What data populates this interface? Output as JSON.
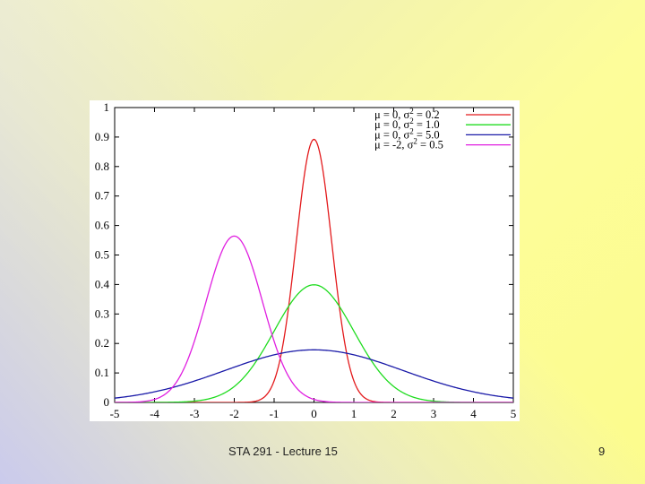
{
  "slide": {
    "footer": "STA 291 - Lecture 15",
    "page_number": "9"
  },
  "chart_data": {
    "type": "line",
    "title": "",
    "xlabel": "",
    "ylabel": "",
    "xlim": [
      -5,
      5
    ],
    "ylim": [
      0,
      1
    ],
    "x_ticks": [
      "-5",
      "-4",
      "-3",
      "-2",
      "-1",
      "0",
      "1",
      "2",
      "3",
      "4",
      "5"
    ],
    "y_ticks": [
      "0",
      "0.1",
      "0.2",
      "0.3",
      "0.4",
      "0.5",
      "0.6",
      "0.7",
      "0.8",
      "0.9",
      "1"
    ],
    "grid": false,
    "legend_position": "top-right",
    "series": [
      {
        "name": "μ = 0, σ2 = 0.2",
        "legend_mu": "μ =  0, σ",
        "legend_rest": " = 0.2",
        "mu": 0,
        "variance": 0.2,
        "color": "#e31a1c",
        "x": [
          -5,
          -4,
          -3,
          -2,
          -1,
          0,
          1,
          2,
          3,
          4,
          5
        ],
        "values": [
          0,
          0,
          0,
          0,
          0.073,
          0.892,
          0.073,
          0,
          0,
          0,
          0
        ]
      },
      {
        "name": "μ = 0, σ2 = 1.0",
        "legend_mu": "μ =  0, σ",
        "legend_rest": " = 1.0",
        "mu": 0,
        "variance": 1.0,
        "color": "#1fdc1f",
        "x": [
          -5,
          -4,
          -3,
          -2,
          -1,
          0,
          1,
          2,
          3,
          4,
          5
        ],
        "values": [
          0,
          0,
          0.004,
          0.054,
          0.242,
          0.399,
          0.242,
          0.054,
          0.004,
          0,
          0
        ]
      },
      {
        "name": "μ = 0, σ2 = 5.0",
        "legend_mu": "μ =  0, σ",
        "legend_rest": " = 5.0",
        "mu": 0,
        "variance": 5.0,
        "color": "#1a1aa8",
        "x": [
          -5,
          -4,
          -3,
          -2,
          -1,
          0,
          1,
          2,
          3,
          4,
          5
        ],
        "values": [
          0.015,
          0.036,
          0.073,
          0.12,
          0.161,
          0.178,
          0.161,
          0.12,
          0.073,
          0.036,
          0.015
        ]
      },
      {
        "name": "μ = -2, σ2 = 0.5",
        "legend_mu": "μ = -2, σ",
        "legend_rest": " = 0.5",
        "mu": -2,
        "variance": 0.5,
        "color": "#e01fe0",
        "x": [
          -5,
          -4,
          -3,
          -2,
          -1,
          0,
          1,
          2,
          3,
          4,
          5
        ],
        "values": [
          0,
          0.01,
          0.208,
          0.564,
          0.208,
          0.01,
          0,
          0,
          0,
          0,
          0
        ]
      }
    ]
  }
}
